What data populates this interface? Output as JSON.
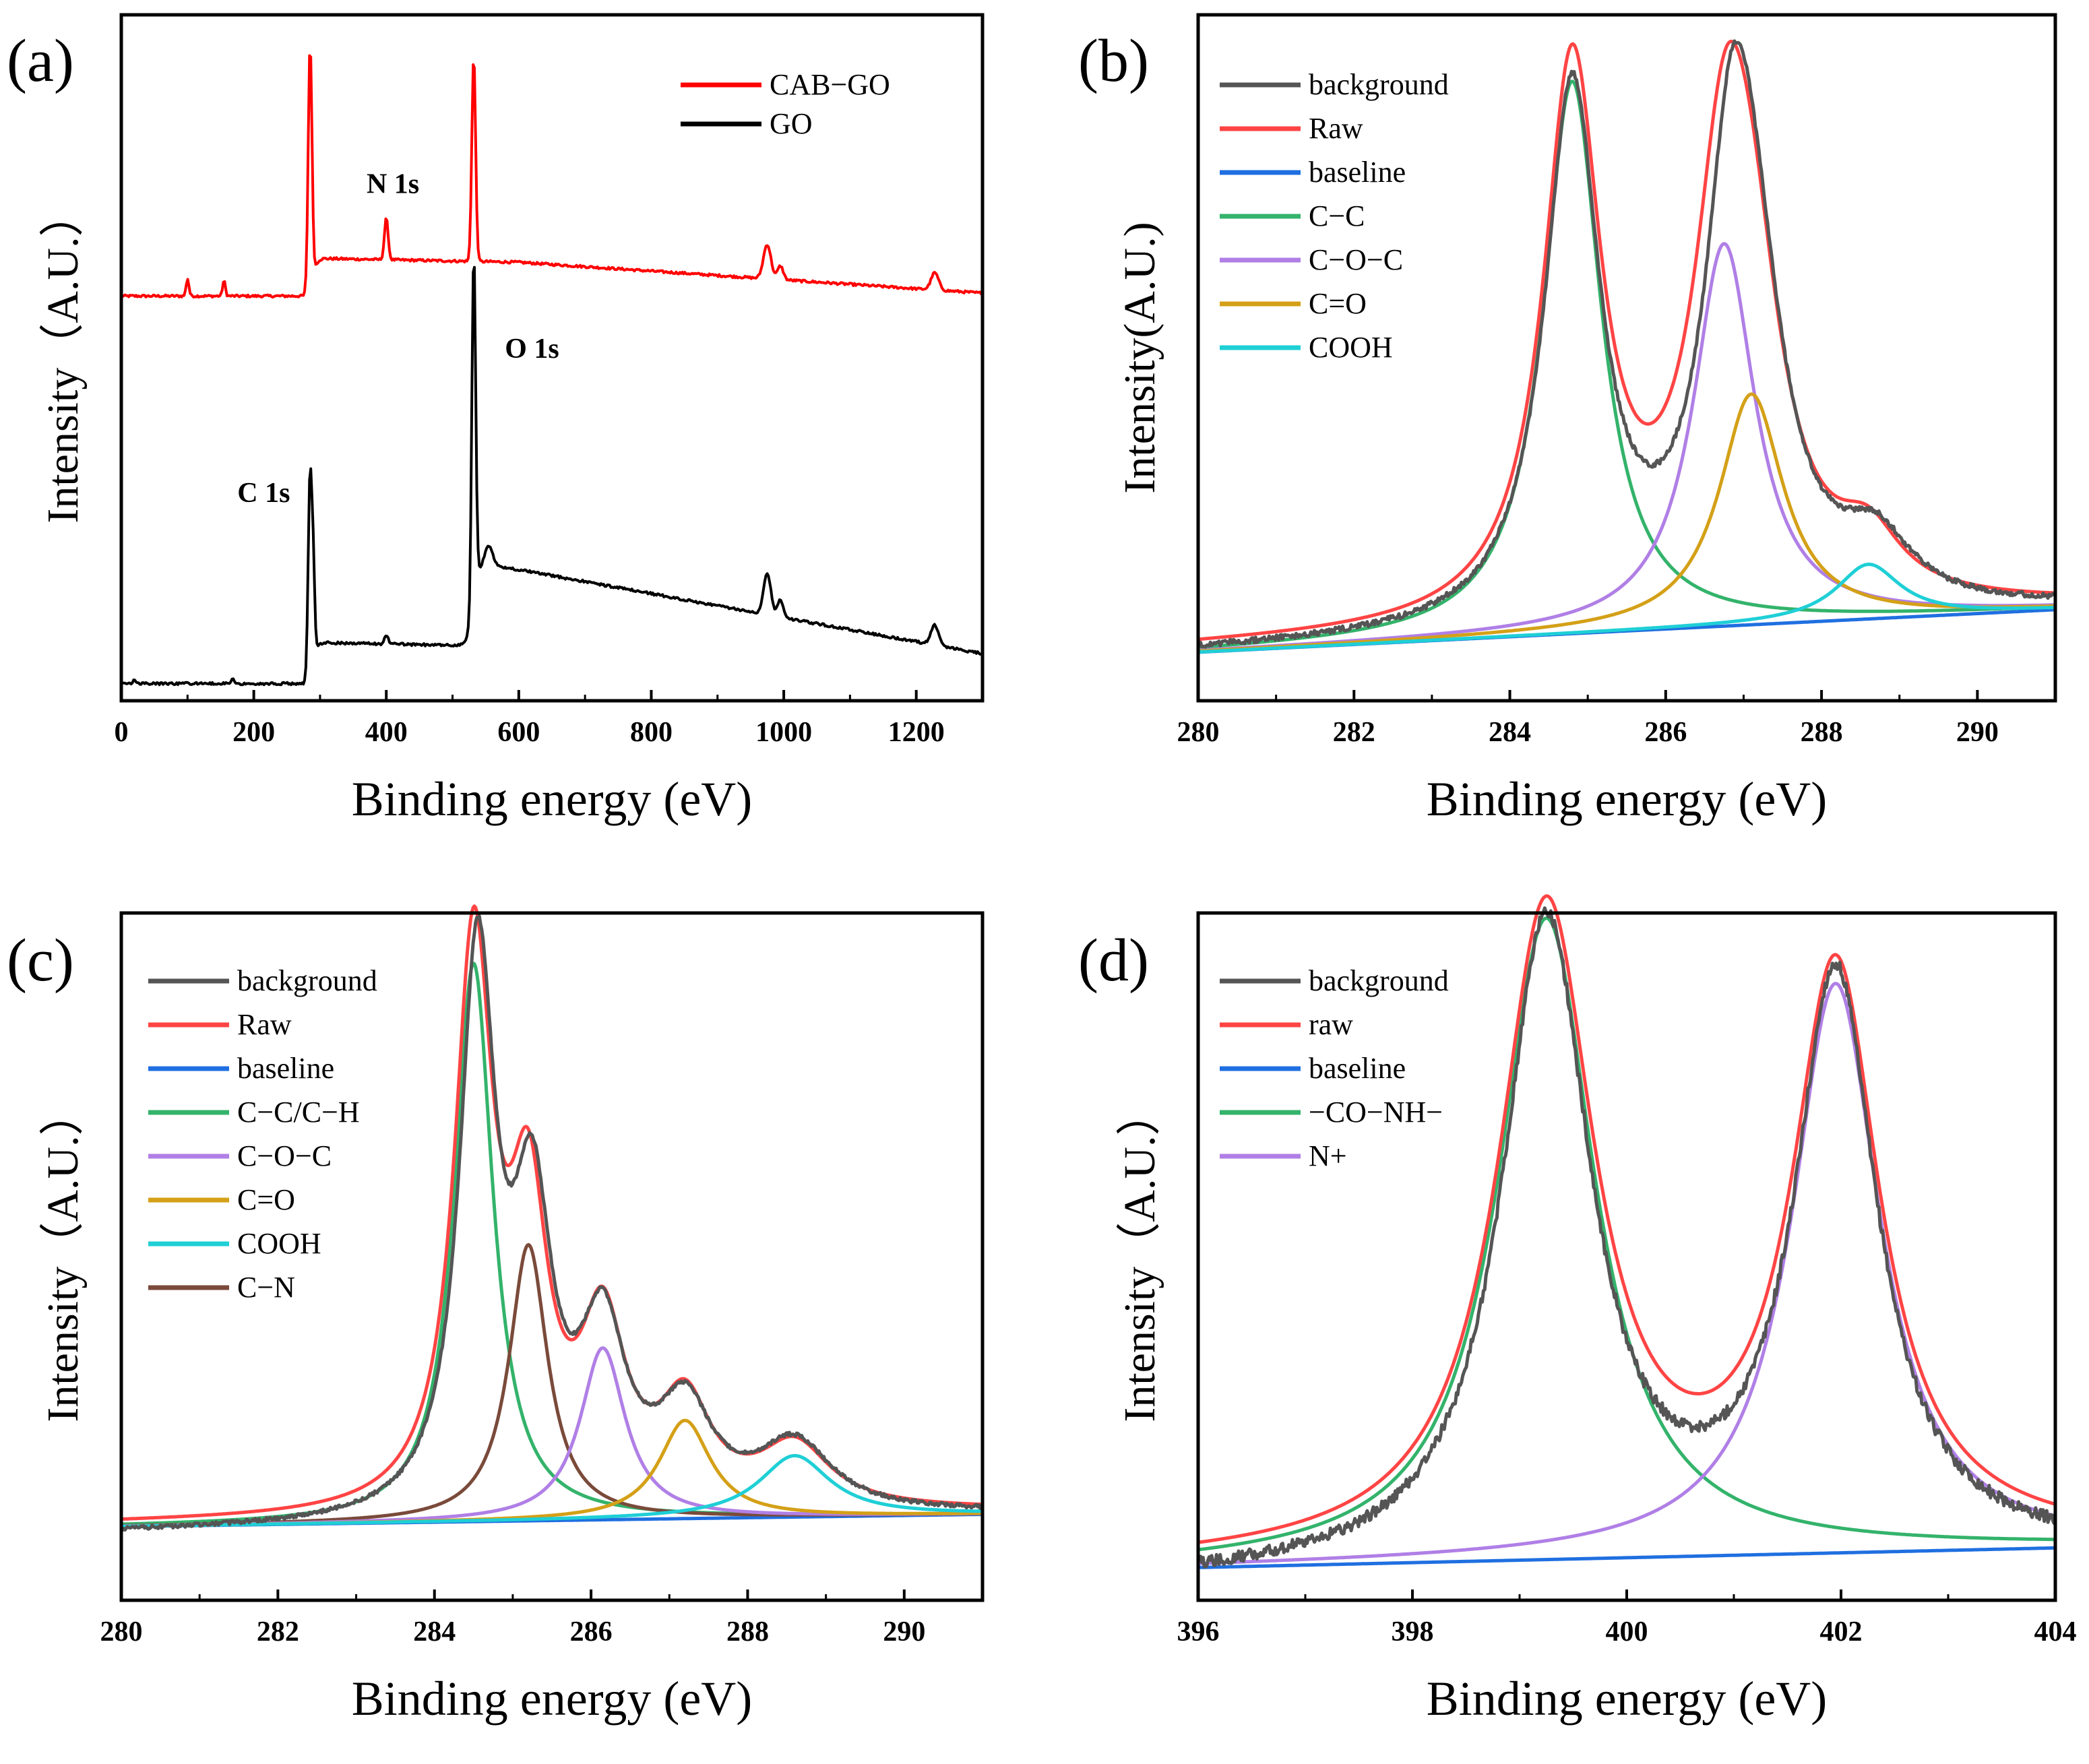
{
  "chart_data": [
    {
      "panel_label": "(a)",
      "type": "line",
      "xlabel": "Binding energy (eV)",
      "ylabel": "Intensity（A.U.）",
      "xlim": [
        0,
        1300
      ],
      "ylim": [
        0,
        100
      ],
      "xticks": [
        "0",
        "200",
        "400",
        "600",
        "800",
        "1000",
        "1200"
      ],
      "xtick_values": [
        0,
        200,
        400,
        600,
        800,
        1000,
        1200
      ],
      "legend": [
        {
          "label": "CAB−GO",
          "color": "#ff0000"
        },
        {
          "label": "GO",
          "color": "#000000"
        }
      ],
      "annotations": [
        {
          "text": "N 1s",
          "x": 410,
          "y": 74
        },
        {
          "text": "O 1s",
          "x": 620,
          "y": 50
        },
        {
          "text": "C 1s",
          "x": 215,
          "y": 29
        }
      ],
      "series": [
        {
          "name": "CAB−GO",
          "color": "#ff0000",
          "style": "survey",
          "base": 59.0,
          "peaks": [
            [
              100,
              2.5,
              3
            ],
            [
              155,
              2.2,
              3
            ],
            [
              285,
              36,
              4
            ],
            [
              400,
              6,
              4
            ],
            [
              532,
              30,
              4
            ],
            [
              975,
              5,
              8
            ],
            [
              995,
              2,
              6
            ],
            [
              1228,
              2.5,
              8
            ]
          ],
          "edge_x": 290,
          "edge_jump": 5.5,
          "bg_slope": -0.0046
        },
        {
          "name": "GO",
          "color": "#000000",
          "style": "survey",
          "base": 2.5,
          "peaks": [
            [
              20,
              0.7,
              3
            ],
            [
              168,
              0.8,
              3
            ],
            [
              285,
              30,
              4
            ],
            [
              290,
              12,
              3
            ],
            [
              400,
              1.3,
              4
            ],
            [
              532,
              50,
              4
            ],
            [
              555,
              3,
              8
            ],
            [
              975,
              6,
              8
            ],
            [
              995,
              2.5,
              6
            ],
            [
              1228,
              3,
              8
            ]
          ],
          "edge_x": 290,
          "edge_jump": 6,
          "bg_slope": -0.0046,
          "edge2_x": 530,
          "edge2_jump": 12
        }
      ]
    },
    {
      "panel_label": "(b)",
      "type": "line",
      "xlabel": "Binding energy (eV)",
      "ylabel": "Intensity(A.U.)",
      "xlim": [
        280,
        291
      ],
      "ylim": [
        -8,
        105
      ],
      "xticks": [
        "280",
        "282",
        "284",
        "286",
        "288",
        "290"
      ],
      "xtick_values": [
        280,
        282,
        284,
        286,
        288,
        290
      ],
      "legend": [
        {
          "label": "background",
          "color": "#555555"
        },
        {
          "label": "Raw",
          "color": "#ff4444"
        },
        {
          "label": "baseline",
          "color": "#1f6fe0"
        },
        {
          "label": "C−C",
          "color": "#33b36b"
        },
        {
          "label": "C−O−C",
          "color": "#b07fe6"
        },
        {
          "label": "C=O",
          "color": "#d4a017"
        },
        {
          "label": "COOH",
          "color": "#1fcfd6"
        }
      ],
      "series": [
        {
          "name": "baseline",
          "color": "#1f6fe0",
          "baseline": [
            0,
            7
          ],
          "peaks": []
        },
        {
          "name": "C−C",
          "color": "#33b36b",
          "baseline": [
            0,
            7
          ],
          "peaks": [
            [
              284.8,
              91,
              0.45
            ]
          ]
        },
        {
          "name": "C−O−C",
          "color": "#b07fe6",
          "baseline": [
            0,
            7
          ],
          "peaks": [
            [
              286.75,
              63,
              0.48
            ]
          ]
        },
        {
          "name": "C=O",
          "color": "#d4a017",
          "baseline": [
            0,
            7
          ],
          "peaks": [
            [
              287.1,
              38,
              0.5
            ]
          ]
        },
        {
          "name": "COOH",
          "color": "#1fcfd6",
          "baseline": [
            0,
            7
          ],
          "peaks": [
            [
              288.6,
              9,
              0.5
            ]
          ]
        },
        {
          "name": "Raw",
          "color": "#ff4444",
          "baseline": [
            0.8,
            7.5
          ],
          "peaks": [
            [
              284.8,
              91,
              0.45
            ],
            [
              286.75,
              63,
              0.48
            ],
            [
              287.1,
              38,
              0.5
            ],
            [
              288.6,
              9,
              0.5
            ]
          ]
        },
        {
          "name": "background",
          "color": "#555555",
          "baseline": [
            0,
            7
          ],
          "peaks": [
            [
              284.8,
              88,
              0.43
            ],
            [
              286.85,
              64,
              0.42
            ],
            [
              287.15,
              36,
              0.5
            ],
            [
              288.7,
              10,
              0.55
            ]
          ],
          "noise": 0.9
        }
      ]
    },
    {
      "panel_label": "(c)",
      "type": "line",
      "xlabel": "Binding energy (eV)",
      "ylabel": "Intensity（A.U.）",
      "xlim": [
        280,
        291
      ],
      "ylim": [
        -12,
        100
      ],
      "xticks": [
        "280",
        "282",
        "284",
        "286",
        "288",
        "290"
      ],
      "xtick_values": [
        280,
        282,
        284,
        286,
        288,
        290
      ],
      "legend": [
        {
          "label": "background",
          "color": "#555555"
        },
        {
          "label": "Raw",
          "color": "#ff4444"
        },
        {
          "label": "baseline",
          "color": "#1f6fe0"
        },
        {
          "label": "C−C/C−H",
          "color": "#33b36b"
        },
        {
          "label": "C−O−C",
          "color": "#b07fe6"
        },
        {
          "label": "C=O",
          "color": "#d4a017"
        },
        {
          "label": "COOH",
          "color": "#1fcfd6"
        },
        {
          "label": "C−N",
          "color": "#7a4a3a"
        }
      ],
      "series": [
        {
          "name": "baseline",
          "color": "#1f6fe0",
          "baseline": [
            0,
            2
          ],
          "peaks": []
        },
        {
          "name": "C−C/C−H",
          "color": "#33b36b",
          "baseline": [
            0,
            2
          ],
          "peaks": [
            [
              284.5,
              91,
              0.3
            ]
          ]
        },
        {
          "name": "C−N",
          "color": "#7a4a3a",
          "baseline": [
            0,
            2
          ],
          "peaks": [
            [
              285.2,
              45,
              0.3
            ]
          ]
        },
        {
          "name": "C−O−C",
          "color": "#b07fe6",
          "baseline": [
            0,
            2
          ],
          "peaks": [
            [
              286.15,
              28,
              0.35
            ]
          ]
        },
        {
          "name": "C=O",
          "color": "#d4a017",
          "baseline": [
            0,
            2
          ],
          "peaks": [
            [
              287.2,
              16,
              0.4
            ]
          ]
        },
        {
          "name": "COOH",
          "color": "#1fcfd6",
          "baseline": [
            0,
            2
          ],
          "peaks": [
            [
              288.6,
              10,
              0.55
            ]
          ]
        },
        {
          "name": "Raw",
          "color": "#ff4444",
          "baseline": [
            0.5,
            2.5
          ],
          "peaks": [
            [
              284.5,
              91,
              0.3
            ],
            [
              285.2,
              45,
              0.3
            ],
            [
              286.15,
              28,
              0.35
            ],
            [
              287.2,
              16,
              0.4
            ],
            [
              288.6,
              10,
              0.55
            ]
          ]
        },
        {
          "name": "background",
          "color": "#555555",
          "baseline": [
            -1,
            2
          ],
          "peaks": [
            [
              284.55,
              90,
              0.28
            ],
            [
              285.25,
              46,
              0.3
            ],
            [
              286.15,
              28,
              0.36
            ],
            [
              287.2,
              16,
              0.42
            ],
            [
              288.6,
              11,
              0.58
            ]
          ],
          "noise": 0.6
        }
      ]
    },
    {
      "panel_label": "(d)",
      "type": "line",
      "xlabel": "Binding energy (eV)",
      "ylabel": "Intensity（A.U.）",
      "xlim": [
        396,
        404
      ],
      "ylim": [
        -5,
        100
      ],
      "xticks": [
        "396",
        "398",
        "400",
        "402",
        "404"
      ],
      "xtick_values": [
        396,
        398,
        400,
        402,
        404
      ],
      "legend": [
        {
          "label": "background",
          "color": "#555555"
        },
        {
          "label": "raw",
          "color": "#ff4444"
        },
        {
          "label": "baseline",
          "color": "#1f6fe0"
        },
        {
          "label": "−CO−NH−",
          "color": "#33b36b"
        },
        {
          "label": "N+",
          "color": "#b07fe6"
        }
      ],
      "series": [
        {
          "name": "baseline",
          "color": "#1f6fe0",
          "baseline": [
            0,
            3
          ],
          "peaks": []
        },
        {
          "name": "−CO−NH−",
          "color": "#33b36b",
          "baseline": [
            0,
            3
          ],
          "peaks": [
            [
              399.25,
              98,
              0.55
            ]
          ]
        },
        {
          "name": "N+",
          "color": "#b07fe6",
          "baseline": [
            0,
            3
          ],
          "peaks": [
            [
              401.95,
              87,
              0.5
            ]
          ]
        },
        {
          "name": "raw",
          "color": "#ff4444",
          "baseline": [
            0.5,
            3.5
          ],
          "peaks": [
            [
              399.25,
              98,
              0.55
            ],
            [
              401.95,
              87,
              0.5
            ]
          ]
        },
        {
          "name": "background",
          "color": "#555555",
          "baseline": [
            -2,
            2
          ],
          "peaks": [
            [
              399.25,
              98,
              0.5
            ],
            [
              401.95,
              88,
              0.47
            ]
          ],
          "noise": 1.8
        }
      ]
    }
  ]
}
